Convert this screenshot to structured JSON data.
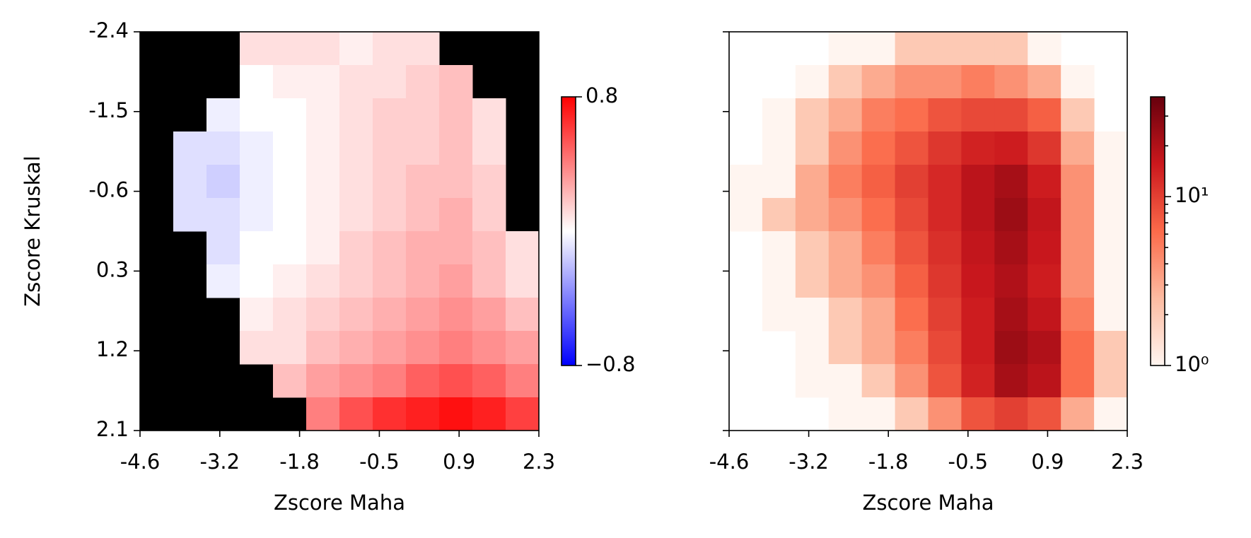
{
  "chart_data": [
    {
      "type": "heatmap",
      "xlabel": "Zscore Maha",
      "ylabel": "Zscore Kruskal",
      "xlim": [
        -4.6,
        2.3
      ],
      "ylim": [
        2.1,
        -2.4
      ],
      "xticks": [
        -4.6,
        {
          "value": -3.22,
          "label": "-3.2"
        },
        {
          "value": -1.84,
          "label": "-1.8"
        },
        {
          "value": -0.46,
          "label": "-0.5"
        },
        {
          "value": 0.92,
          "label": "0.9"
        },
        2.3
      ],
      "yticks": [
        -2.4,
        -1.5,
        -0.6,
        0.3,
        1.2,
        2.1
      ],
      "cmap": "bwr",
      "background": "#000000",
      "colorbar": {
        "clim": [
          -0.8,
          0.8
        ],
        "ticks": [
          0.8,
          {
            "value": -0.8,
            "label": "−0.8"
          }
        ]
      },
      "values": [
        [
          null,
          null,
          null,
          0.1,
          0.1,
          0.1,
          0.05,
          0.1,
          0.1,
          null,
          null,
          null
        ],
        [
          null,
          null,
          null,
          0.0,
          0.05,
          0.05,
          0.1,
          0.1,
          0.15,
          0.2,
          null,
          null
        ],
        [
          null,
          null,
          -0.05,
          0.0,
          0.0,
          0.05,
          0.1,
          0.15,
          0.15,
          0.2,
          0.1,
          null
        ],
        [
          null,
          -0.1,
          -0.1,
          -0.05,
          0.0,
          0.05,
          0.1,
          0.15,
          0.15,
          0.2,
          0.1,
          null
        ],
        [
          null,
          -0.1,
          -0.15,
          -0.05,
          0.0,
          0.05,
          0.1,
          0.15,
          0.2,
          0.2,
          0.15,
          null
        ],
        [
          null,
          -0.1,
          -0.1,
          -0.05,
          0.0,
          0.05,
          0.1,
          0.15,
          0.2,
          0.25,
          0.15,
          null
        ],
        [
          null,
          null,
          -0.1,
          0.0,
          0.0,
          0.05,
          0.15,
          0.2,
          0.25,
          0.25,
          0.2,
          0.1
        ],
        [
          null,
          null,
          -0.05,
          0.0,
          0.05,
          0.1,
          0.15,
          0.2,
          0.25,
          0.3,
          0.2,
          0.1
        ],
        [
          null,
          null,
          null,
          0.05,
          0.1,
          0.15,
          0.2,
          0.25,
          0.3,
          0.35,
          0.3,
          0.2
        ],
        [
          null,
          null,
          null,
          0.1,
          0.1,
          0.2,
          0.25,
          0.3,
          0.35,
          0.4,
          0.35,
          0.3
        ],
        [
          null,
          null,
          null,
          null,
          0.2,
          0.3,
          0.35,
          0.4,
          0.5,
          0.55,
          0.5,
          0.4
        ],
        [
          null,
          null,
          null,
          null,
          null,
          0.4,
          0.55,
          0.65,
          0.7,
          0.75,
          0.7,
          0.6
        ]
      ]
    },
    {
      "type": "heatmap",
      "xlabel": "Zscore Maha",
      "xlim": [
        -4.6,
        2.3
      ],
      "ylim": [
        2.1,
        -2.4
      ],
      "xticks": [
        -4.6,
        {
          "value": -3.22,
          "label": "-3.2"
        },
        {
          "value": -1.84,
          "label": "-1.8"
        },
        {
          "value": -0.46,
          "label": "-0.5"
        },
        {
          "value": 0.92,
          "label": "0.9"
        },
        2.3
      ],
      "yticks": [
        -2.4,
        -1.5,
        -0.6,
        0.3,
        1.2,
        2.1
      ],
      "cmap": "Reds",
      "background": "#ffffff",
      "colorbar": {
        "clim": [
          1,
          39
        ],
        "scale": "log",
        "ticks": [
          {
            "value": 1,
            "label": "10⁰"
          },
          {
            "value": 10,
            "label": "10¹"
          }
        ],
        "minor_ticks": [
          2,
          3,
          4,
          5,
          6,
          7,
          8,
          9,
          20,
          30
        ]
      },
      "values": [
        [
          null,
          null,
          null,
          1,
          1,
          2,
          2,
          2,
          2,
          1,
          null,
          null
        ],
        [
          null,
          null,
          1,
          2,
          3,
          4,
          4,
          5,
          4,
          3,
          1,
          null
        ],
        [
          null,
          1,
          2,
          3,
          5,
          6,
          8,
          9,
          9,
          7,
          2,
          null
        ],
        [
          null,
          1,
          2,
          4,
          6,
          8,
          11,
          14,
          15,
          11,
          3,
          1
        ],
        [
          1,
          1,
          3,
          5,
          7,
          10,
          13,
          18,
          22,
          15,
          4,
          1
        ],
        [
          1,
          2,
          3,
          4,
          6,
          9,
          13,
          18,
          24,
          17,
          4,
          1
        ],
        [
          null,
          1,
          2,
          3,
          5,
          8,
          12,
          17,
          22,
          16,
          4,
          1
        ],
        [
          null,
          1,
          2,
          3,
          4,
          7,
          11,
          16,
          20,
          15,
          4,
          1
        ],
        [
          null,
          1,
          1,
          2,
          3,
          6,
          10,
          15,
          22,
          17,
          5,
          1
        ],
        [
          null,
          null,
          1,
          2,
          3,
          5,
          9,
          15,
          24,
          20,
          6,
          2
        ],
        [
          null,
          null,
          1,
          1,
          2,
          4,
          8,
          14,
          22,
          18,
          6,
          2
        ],
        [
          null,
          null,
          null,
          1,
          1,
          2,
          4,
          8,
          10,
          8,
          3,
          1
        ]
      ]
    }
  ]
}
